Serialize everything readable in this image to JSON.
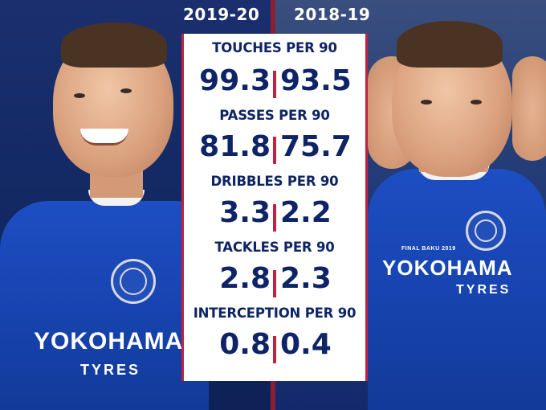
{
  "seasons": {
    "left": "2019-20",
    "right": "2018-19"
  },
  "stats": [
    {
      "title": "TOUCHES PER 90",
      "left": "99.3",
      "right": "93.5"
    },
    {
      "title": "PASSES PER 90",
      "left": "81.8",
      "right": "75.7"
    },
    {
      "title": "DRIBBLES PER 90",
      "left": "3.3",
      "right": "2.2"
    },
    {
      "title": "TACKLES PER 90",
      "left": "2.8",
      "right": "2.3"
    },
    {
      "title": "INTERCEPTION PER 90",
      "left": "0.8",
      "right": "0.4"
    }
  ],
  "shirt_left": {
    "sponsor_line1": "YOKOHAMA",
    "sponsor_line2": "TYRES"
  },
  "shirt_right": {
    "sponsor_line1": "YOKOHAMA",
    "sponsor_line2": "TYRES",
    "patch": "FINAL BAKU 2019"
  },
  "colors": {
    "navy": "#0e2466",
    "accent_red": "#c0223f",
    "kit_blue": "#1744b0"
  }
}
